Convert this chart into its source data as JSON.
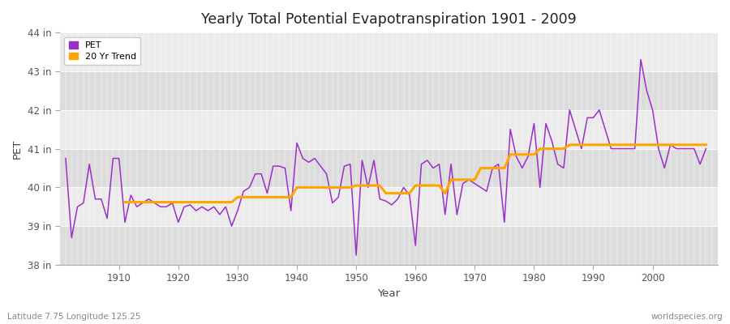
{
  "title": "Yearly Total Potential Evapotranspiration 1901 - 2009",
  "xlabel": "Year",
  "ylabel": "PET",
  "subtitle_left": "Latitude 7.75 Longitude 125.25",
  "subtitle_right": "worldspecies.org",
  "pet_color": "#9B30C8",
  "trend_color": "#FFA500",
  "bg_light": "#EBEBEB",
  "bg_dark": "#DCDCDC",
  "ylim": [
    38.0,
    44.0
  ],
  "yticks": [
    38,
    39,
    40,
    41,
    42,
    43,
    44
  ],
  "ytick_labels": [
    "38 in",
    "39 in",
    "40 in",
    "41 in",
    "42 in",
    "43 in",
    "44 in"
  ],
  "years": [
    1901,
    1902,
    1903,
    1904,
    1905,
    1906,
    1907,
    1908,
    1909,
    1910,
    1911,
    1912,
    1913,
    1914,
    1915,
    1916,
    1917,
    1918,
    1919,
    1920,
    1921,
    1922,
    1923,
    1924,
    1925,
    1926,
    1927,
    1928,
    1929,
    1930,
    1931,
    1932,
    1933,
    1934,
    1935,
    1936,
    1937,
    1938,
    1939,
    1940,
    1941,
    1942,
    1943,
    1944,
    1945,
    1946,
    1947,
    1948,
    1949,
    1950,
    1951,
    1952,
    1953,
    1954,
    1955,
    1956,
    1957,
    1958,
    1959,
    1960,
    1961,
    1962,
    1963,
    1964,
    1965,
    1966,
    1967,
    1968,
    1969,
    1970,
    1971,
    1972,
    1973,
    1974,
    1975,
    1976,
    1977,
    1978,
    1979,
    1980,
    1981,
    1982,
    1983,
    1984,
    1985,
    1986,
    1987,
    1988,
    1989,
    1990,
    1991,
    1992,
    1993,
    1994,
    1995,
    1996,
    1997,
    1998,
    1999,
    2000,
    2001,
    2002,
    2003,
    2004,
    2005,
    2006,
    2007,
    2008,
    2009
  ],
  "pet_values": [
    40.75,
    38.7,
    39.5,
    39.6,
    40.6,
    39.7,
    39.7,
    39.2,
    40.75,
    40.75,
    39.1,
    39.8,
    39.5,
    39.6,
    39.7,
    39.6,
    39.5,
    39.5,
    39.6,
    39.1,
    39.5,
    39.55,
    39.4,
    39.5,
    39.4,
    39.5,
    39.3,
    39.5,
    39.0,
    39.4,
    39.9,
    40.0,
    40.35,
    40.35,
    39.85,
    40.55,
    40.55,
    40.5,
    39.4,
    41.15,
    40.75,
    40.65,
    40.75,
    40.55,
    40.35,
    39.6,
    39.75,
    40.55,
    40.6,
    38.25,
    40.7,
    40.0,
    40.7,
    39.7,
    39.65,
    39.55,
    39.7,
    40.0,
    39.8,
    38.5,
    40.6,
    40.7,
    40.5,
    40.6,
    39.3,
    40.6,
    39.3,
    40.1,
    40.2,
    40.1,
    40.0,
    39.9,
    40.5,
    40.6,
    39.1,
    41.5,
    40.8,
    40.5,
    40.8,
    41.65,
    40.0,
    41.65,
    41.2,
    40.6,
    40.5,
    42.0,
    41.5,
    41.0,
    41.8,
    41.8,
    42.0,
    41.5,
    41.0,
    41.0,
    41.0,
    41.0,
    41.0,
    43.3,
    42.5,
    42.0,
    41.0,
    40.5,
    41.1,
    41.0,
    41.0,
    41.0,
    41.0,
    40.6,
    41.0
  ],
  "trend_years": [
    1911,
    1912,
    1913,
    1914,
    1915,
    1916,
    1917,
    1918,
    1919,
    1920,
    1921,
    1922,
    1923,
    1924,
    1925,
    1926,
    1927,
    1928,
    1929,
    1930,
    1931,
    1932,
    1933,
    1934,
    1935,
    1936,
    1937,
    1938,
    1939,
    1940,
    1941,
    1942,
    1943,
    1944,
    1945,
    1946,
    1947,
    1948,
    1949,
    1950,
    1951,
    1952,
    1953,
    1954,
    1955,
    1956,
    1957,
    1958,
    1959,
    1960,
    1961,
    1962,
    1963,
    1964,
    1965,
    1966,
    1967,
    1968,
    1969,
    1970,
    1971,
    1972,
    1973,
    1974,
    1975,
    1976,
    1977,
    1978,
    1979,
    1980,
    1981,
    1982,
    1983,
    1984,
    1985,
    1986,
    1987,
    1988,
    1989,
    1990,
    1991,
    1992,
    1993,
    1994,
    1995,
    1996,
    1997,
    1998,
    1999,
    2000,
    2001,
    2002,
    2003,
    2004,
    2005,
    2006,
    2007,
    2008,
    2009
  ],
  "trend_values": [
    39.62,
    39.62,
    39.62,
    39.62,
    39.62,
    39.62,
    39.62,
    39.62,
    39.62,
    39.62,
    39.62,
    39.62,
    39.62,
    39.62,
    39.62,
    39.62,
    39.62,
    39.62,
    39.62,
    39.75,
    39.75,
    39.75,
    39.75,
    39.75,
    39.75,
    39.75,
    39.75,
    39.75,
    39.75,
    40.0,
    40.0,
    40.0,
    40.0,
    40.0,
    40.0,
    40.0,
    40.0,
    40.0,
    40.0,
    40.05,
    40.05,
    40.05,
    40.05,
    40.05,
    39.85,
    39.85,
    39.85,
    39.85,
    39.85,
    40.05,
    40.05,
    40.05,
    40.05,
    40.05,
    39.85,
    40.2,
    40.2,
    40.2,
    40.2,
    40.2,
    40.5,
    40.5,
    40.5,
    40.5,
    40.5,
    40.85,
    40.85,
    40.85,
    40.85,
    40.85,
    41.0,
    41.0,
    41.0,
    41.0,
    41.0,
    41.1,
    41.1,
    41.1,
    41.1,
    41.1,
    41.1,
    41.1,
    41.1,
    41.1,
    41.1,
    41.1,
    41.1,
    41.1,
    41.1,
    41.1,
    41.1,
    41.1,
    41.1,
    41.1,
    41.1,
    41.1,
    41.1,
    41.1,
    41.1
  ]
}
